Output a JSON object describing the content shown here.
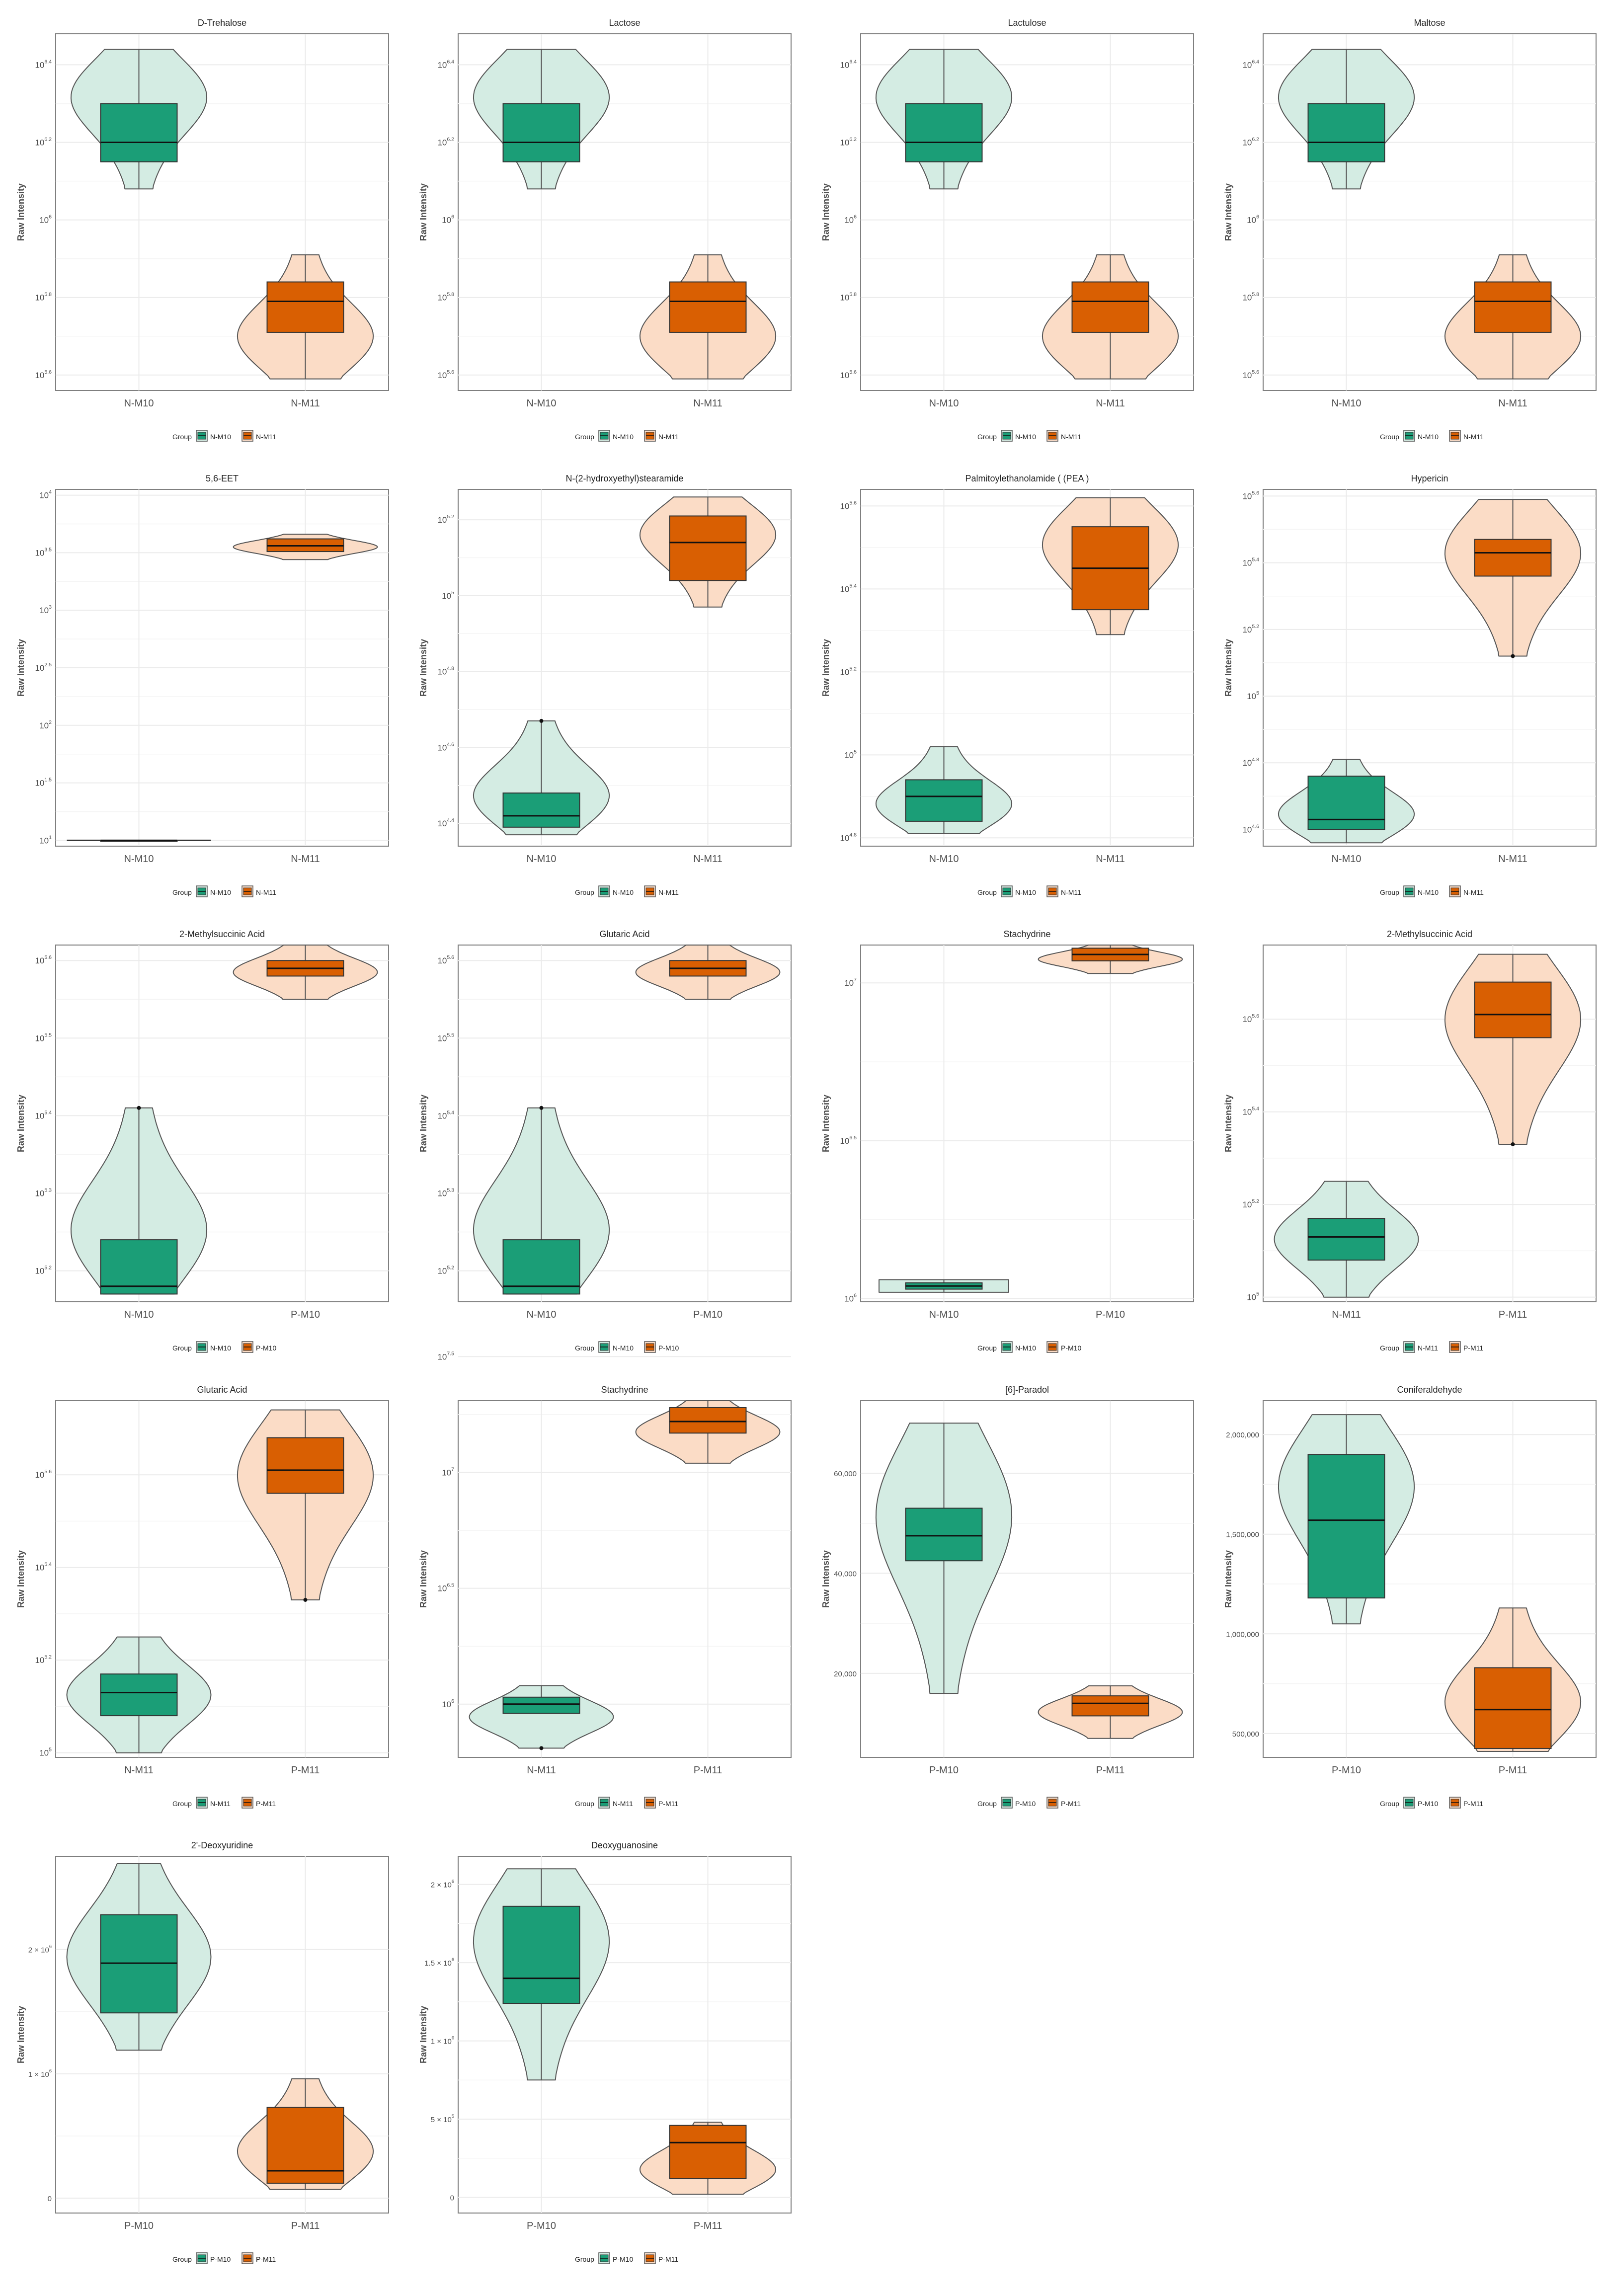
{
  "colors": {
    "first_group_fill": "#1b9e77",
    "first_group_violin": "#d4ece3",
    "second_group_fill": "#d95f02",
    "second_group_violin": "#fbdcc6",
    "outline": "#555555",
    "grid": "#ebebeb",
    "panel_border": "#7f7f7f"
  },
  "legend_title": "Group",
  "chart_data": [
    {
      "type": "violin",
      "title": "D-Trehalose",
      "ylabel": "Raw Intensity",
      "yscale": "log10",
      "ylim_exp": [
        5.56,
        6.48
      ],
      "tick_labels": [
        "10^5.6",
        "10^5.8",
        "10^6",
        "10^6.2",
        "10^6.4"
      ],
      "tick_exps": [
        5.6,
        5.8,
        6.0,
        6.2,
        6.4
      ],
      "groups": [
        {
          "name": "N-M10",
          "min": 6.08,
          "q1": 6.15,
          "median": 6.2,
          "q3": 6.3,
          "max": 6.44,
          "lower_whisker": 6.08,
          "upper_whisker": 6.44,
          "shape": "upper"
        },
        {
          "name": "N-M11",
          "min": 5.59,
          "q1": 5.71,
          "median": 5.79,
          "q3": 5.84,
          "max": 5.91,
          "lower_whisker": 5.59,
          "upper_whisker": 5.91,
          "shape": "lower"
        }
      ]
    },
    {
      "type": "violin",
      "title": "Lactose",
      "ylabel": "Raw Intensity",
      "yscale": "log10",
      "ylim_exp": [
        5.56,
        6.48
      ],
      "tick_labels": [
        "10^5.6",
        "10^5.8",
        "10^6",
        "10^6.2",
        "10^6.4"
      ],
      "tick_exps": [
        5.6,
        5.8,
        6.0,
        6.2,
        6.4
      ],
      "groups": [
        {
          "name": "N-M10",
          "min": 6.08,
          "q1": 6.15,
          "median": 6.2,
          "q3": 6.3,
          "max": 6.44,
          "lower_whisker": 6.08,
          "upper_whisker": 6.44,
          "shape": "upper"
        },
        {
          "name": "N-M11",
          "min": 5.59,
          "q1": 5.71,
          "median": 5.79,
          "q3": 5.84,
          "max": 5.91,
          "lower_whisker": 5.59,
          "upper_whisker": 5.91,
          "shape": "lower"
        }
      ]
    },
    {
      "type": "violin",
      "title": "Lactulose",
      "ylabel": "Raw Intensity",
      "yscale": "log10",
      "ylim_exp": [
        5.56,
        6.48
      ],
      "tick_labels": [
        "10^5.6",
        "10^5.8",
        "10^6",
        "10^6.2",
        "10^6.4"
      ],
      "tick_exps": [
        5.6,
        5.8,
        6.0,
        6.2,
        6.4
      ],
      "groups": [
        {
          "name": "N-M10",
          "min": 6.08,
          "q1": 6.15,
          "median": 6.2,
          "q3": 6.3,
          "max": 6.44,
          "lower_whisker": 6.08,
          "upper_whisker": 6.44,
          "shape": "upper"
        },
        {
          "name": "N-M11",
          "min": 5.59,
          "q1": 5.71,
          "median": 5.79,
          "q3": 5.84,
          "max": 5.91,
          "lower_whisker": 5.59,
          "upper_whisker": 5.91,
          "shape": "lower"
        }
      ]
    },
    {
      "type": "violin",
      "title": "Maltose",
      "ylabel": "Raw Intensity",
      "yscale": "log10",
      "ylim_exp": [
        5.56,
        6.48
      ],
      "tick_labels": [
        "10^5.6",
        "10^5.8",
        "10^6",
        "10^6.2",
        "10^6.4"
      ],
      "tick_exps": [
        5.6,
        5.8,
        6.0,
        6.2,
        6.4
      ],
      "groups": [
        {
          "name": "N-M10",
          "min": 6.08,
          "q1": 6.15,
          "median": 6.2,
          "q3": 6.3,
          "max": 6.44,
          "lower_whisker": 6.08,
          "upper_whisker": 6.44,
          "shape": "upper"
        },
        {
          "name": "N-M11",
          "min": 5.59,
          "q1": 5.71,
          "median": 5.79,
          "q3": 5.84,
          "max": 5.91,
          "lower_whisker": 5.59,
          "upper_whisker": 5.91,
          "shape": "lower"
        }
      ]
    },
    {
      "type": "violin",
      "title": "5,6-EET",
      "ylabel": "Raw Intensity",
      "yscale": "log10",
      "ylim_exp": [
        0.95,
        4.05
      ],
      "tick_labels": [
        "10^1",
        "10^1.5",
        "10^2",
        "10^2.5",
        "10^3",
        "10^3.5",
        "10^4"
      ],
      "tick_exps": [
        1,
        1.5,
        2,
        2.5,
        3,
        3.5,
        4
      ],
      "groups": [
        {
          "name": "N-M10",
          "min": 1.0,
          "q1": 1.0,
          "median": 1.0,
          "q3": 1.0,
          "max": 1.0,
          "lower_whisker": 1.0,
          "upper_whisker": 1.0,
          "shape": "flat"
        },
        {
          "name": "N-M11",
          "min": 3.44,
          "q1": 3.51,
          "median": 3.56,
          "q3": 3.62,
          "max": 3.66,
          "lower_whisker": 3.51,
          "upper_whisker": 3.62,
          "shape": "even"
        }
      ]
    },
    {
      "type": "violin",
      "title": "N-(2-hydroxyethyl)stearamide",
      "ylabel": "Raw Intensity",
      "yscale": "log10",
      "ylim_exp": [
        4.34,
        5.28
      ],
      "tick_labels": [
        "10^4.4",
        "10^4.6",
        "10^4.8",
        "10^5",
        "10^5.2"
      ],
      "tick_exps": [
        4.4,
        4.6,
        4.8,
        5.0,
        5.2
      ],
      "groups": [
        {
          "name": "N-M10",
          "min": 4.37,
          "q1": 4.39,
          "median": 4.42,
          "q3": 4.48,
          "max": 4.67,
          "lower_whisker": 4.37,
          "upper_whisker": 4.67,
          "outliers": [
            4.67
          ],
          "shape": "lower"
        },
        {
          "name": "N-M11",
          "min": 4.97,
          "q1": 5.04,
          "median": 5.14,
          "q3": 5.21,
          "max": 5.26,
          "lower_whisker": 4.97,
          "upper_whisker": 5.26,
          "shape": "upper"
        }
      ]
    },
    {
      "type": "violin",
      "title": "Palmitoylethanolamide ( (PEA )",
      "ylabel": "Raw Intensity",
      "yscale": "log10",
      "ylim_exp": [
        4.78,
        5.64
      ],
      "tick_labels": [
        "10^4.8",
        "10^5",
        "10^5.2",
        "10^5.4",
        "10^5.6"
      ],
      "tick_exps": [
        4.8,
        5.0,
        5.2,
        5.4,
        5.6
      ],
      "groups": [
        {
          "name": "N-M10",
          "min": 4.81,
          "q1": 4.84,
          "median": 4.9,
          "q3": 4.94,
          "max": 5.02,
          "lower_whisker": 4.81,
          "upper_whisker": 5.02,
          "shape": "lower"
        },
        {
          "name": "N-M11",
          "min": 5.29,
          "q1": 5.35,
          "median": 5.45,
          "q3": 5.55,
          "max": 5.62,
          "lower_whisker": 5.29,
          "upper_whisker": 5.62,
          "shape": "upper"
        }
      ]
    },
    {
      "type": "violin",
      "title": "Hypericin",
      "ylabel": "Raw Intensity",
      "yscale": "log10",
      "ylim_exp": [
        4.55,
        5.62
      ],
      "tick_labels": [
        "10^4.6",
        "10^4.8",
        "10^5",
        "10^5.2",
        "10^5.4",
        "10^5.6"
      ],
      "tick_exps": [
        4.6,
        4.8,
        5.0,
        5.2,
        5.4,
        5.6
      ],
      "groups": [
        {
          "name": "N-M10",
          "min": 4.56,
          "q1": 4.6,
          "median": 4.63,
          "q3": 4.76,
          "max": 4.81,
          "lower_whisker": 4.56,
          "upper_whisker": 4.81,
          "shape": "lower"
        },
        {
          "name": "N-M11",
          "min": 5.12,
          "q1": 5.36,
          "median": 5.43,
          "q3": 5.47,
          "max": 5.59,
          "lower_whisker": 5.12,
          "upper_whisker": 5.59,
          "outliers": [
            5.12
          ],
          "shape": "upper"
        }
      ]
    },
    {
      "type": "violin",
      "title": "2-Methylsuccinic Acid",
      "ylabel": "Raw Intensity",
      "yscale": "log10",
      "ylim_exp": [
        5.16,
        5.62
      ],
      "tick_labels": [
        "10^5.2",
        "10^5.3",
        "10^5.4",
        "10^5.5",
        "10^5.6"
      ],
      "tick_exps": [
        5.2,
        5.3,
        5.4,
        5.5,
        5.6
      ],
      "groups": [
        {
          "name": "N-M10",
          "min": 5.17,
          "q1": 5.17,
          "median": 5.18,
          "q3": 5.24,
          "max": 5.41,
          "lower_whisker": 5.17,
          "upper_whisker": 5.41,
          "outliers": [
            5.41
          ],
          "shape": "lower"
        },
        {
          "name": "P-M10",
          "min": 5.55,
          "q1": 5.58,
          "median": 5.59,
          "q3": 5.6,
          "max": 5.62,
          "lower_whisker": 5.55,
          "upper_whisker": 5.62,
          "shape": "even"
        }
      ]
    },
    {
      "type": "violin",
      "title": "Glutaric Acid",
      "ylabel": "Raw Intensity",
      "yscale": "log10",
      "ylim_exp": [
        5.16,
        5.62
      ],
      "tick_labels": [
        "10^5.2",
        "10^5.3",
        "10^5.4",
        "10^5.5",
        "10^5.6"
      ],
      "tick_exps": [
        5.2,
        5.3,
        5.4,
        5.5,
        5.6
      ],
      "groups": [
        {
          "name": "N-M10",
          "min": 5.17,
          "q1": 5.17,
          "median": 5.18,
          "q3": 5.24,
          "max": 5.41,
          "lower_whisker": 5.17,
          "upper_whisker": 5.41,
          "outliers": [
            5.41
          ],
          "shape": "lower"
        },
        {
          "name": "P-M10",
          "min": 5.55,
          "q1": 5.58,
          "median": 5.59,
          "q3": 5.6,
          "max": 5.62,
          "lower_whisker": 5.55,
          "upper_whisker": 5.62,
          "shape": "even"
        }
      ]
    },
    {
      "type": "violin",
      "title": "Stachydrine",
      "ylabel": "Raw Intensity",
      "yscale": "log10",
      "ylim_exp": [
        5.99,
        7.12
      ],
      "tick_labels": [
        "10^6",
        "10^6.5",
        "10^7"
      ],
      "tick_exps": [
        6.0,
        6.5,
        7.0
      ],
      "groups": [
        {
          "name": "N-M10",
          "min": 6.02,
          "q1": 6.03,
          "median": 6.04,
          "q3": 6.05,
          "max": 6.06,
          "lower_whisker": 6.02,
          "upper_whisker": 6.06,
          "shape": "flat"
        },
        {
          "name": "P-M10",
          "min": 7.03,
          "q1": 7.07,
          "median": 7.09,
          "q3": 7.11,
          "max": 7.12,
          "lower_whisker": 7.03,
          "upper_whisker": 7.12,
          "shape": "even"
        }
      ]
    },
    {
      "type": "violin",
      "title": "2-Methylsuccinic Acid",
      "ylabel": "Raw Intensity",
      "yscale": "log10",
      "ylim_exp": [
        4.99,
        5.76
      ],
      "tick_labels": [
        "10^5",
        "10^5.2",
        "10^5.4",
        "10^5.6"
      ],
      "tick_exps": [
        5.0,
        5.2,
        5.4,
        5.6
      ],
      "groups": [
        {
          "name": "N-M11",
          "min": 5.0,
          "q1": 5.08,
          "median": 5.13,
          "q3": 5.17,
          "max": 5.25,
          "lower_whisker": 5.0,
          "upper_whisker": 5.25,
          "shape": "even"
        },
        {
          "name": "P-M11",
          "min": 5.33,
          "q1": 5.56,
          "median": 5.61,
          "q3": 5.68,
          "max": 5.74,
          "lower_whisker": 5.33,
          "upper_whisker": 5.74,
          "outliers": [
            5.33
          ],
          "shape": "upper"
        }
      ]
    },
    {
      "type": "violin",
      "title": "Glutaric Acid",
      "ylabel": "Raw Intensity",
      "yscale": "log10",
      "ylim_exp": [
        4.99,
        5.76
      ],
      "tick_labels": [
        "10^5",
        "10^5.2",
        "10^5.4",
        "10^5.6"
      ],
      "tick_exps": [
        5.0,
        5.2,
        5.4,
        5.6
      ],
      "groups": [
        {
          "name": "N-M11",
          "min": 5.0,
          "q1": 5.08,
          "median": 5.13,
          "q3": 5.17,
          "max": 5.25,
          "lower_whisker": 5.0,
          "upper_whisker": 5.25,
          "shape": "even"
        },
        {
          "name": "P-M11",
          "min": 5.33,
          "q1": 5.56,
          "median": 5.61,
          "q3": 5.68,
          "max": 5.74,
          "lower_whisker": 5.33,
          "upper_whisker": 5.74,
          "outliers": [
            5.33
          ],
          "shape": "upper"
        }
      ]
    },
    {
      "type": "violin",
      "title": "Stachydrine",
      "ylabel": "Raw Intensity",
      "yscale": "log10",
      "ylim_exp": [
        5.77,
        7.31
      ],
      "tick_labels": [
        "10^6",
        "10^6.5",
        "10^7",
        "10^7.5"
      ],
      "tick_exps": [
        6.0,
        6.5,
        7.0,
        7.5
      ],
      "groups": [
        {
          "name": "N-M11",
          "min": 5.81,
          "q1": 5.96,
          "median": 6.0,
          "q3": 6.03,
          "max": 6.08,
          "lower_whisker": 5.96,
          "upper_whisker": 6.08,
          "outliers": [
            5.81
          ],
          "shape": "even"
        },
        {
          "name": "P-M11",
          "min": 7.04,
          "q1": 7.17,
          "median": 7.22,
          "q3": 7.28,
          "max": 7.31,
          "lower_whisker": 7.04,
          "upper_whisker": 7.31,
          "shape": "even"
        }
      ]
    },
    {
      "type": "violin",
      "title": "[6]-Paradol",
      "ylabel": "Raw Intensity",
      "yscale": "linear",
      "ylim": [
        3200,
        74500
      ],
      "tick_labels": [
        "20,000",
        "40,000",
        "60,000"
      ],
      "tick_values": [
        20000,
        40000,
        60000
      ],
      "groups": [
        {
          "name": "P-M10",
          "min": 16000,
          "q1": 42500,
          "median": 47500,
          "q3": 53000,
          "max": 70000,
          "lower_whisker": 16000,
          "upper_whisker": 70000,
          "shape": "upper"
        },
        {
          "name": "P-M11",
          "min": 7000,
          "q1": 11500,
          "median": 14000,
          "q3": 15500,
          "max": 17500,
          "lower_whisker": 7000,
          "upper_whisker": 17500,
          "shape": "even"
        }
      ]
    },
    {
      "type": "violin",
      "title": "Coniferaldehyde",
      "ylabel": "Raw Intensity",
      "yscale": "linear",
      "ylim": [
        380000,
        2170000
      ],
      "tick_labels": [
        "500,000",
        "1,000,000",
        "1,500,000",
        "2,000,000"
      ],
      "tick_values": [
        500000,
        1000000,
        1500000,
        2000000
      ],
      "groups": [
        {
          "name": "P-M10",
          "min": 1050000,
          "q1": 1180000,
          "median": 1570000,
          "q3": 1900000,
          "max": 2100000,
          "lower_whisker": 1050000,
          "upper_whisker": 2100000,
          "shape": "upper"
        },
        {
          "name": "P-M11",
          "min": 410000,
          "q1": 425000,
          "median": 620000,
          "q3": 830000,
          "max": 1130000,
          "lower_whisker": 410000,
          "upper_whisker": 1130000,
          "shape": "lower"
        }
      ]
    },
    {
      "type": "violin",
      "title": "2'-Deoxyuridine",
      "ylabel": "Raw Intensity",
      "yscale": "linear",
      "ylim": [
        -120000,
        2750000
      ],
      "tick_labels": [
        "0",
        "1 × 10^6",
        "2 × 10^6"
      ],
      "tick_values": [
        0,
        1000000,
        2000000
      ],
      "groups": [
        {
          "name": "P-M10",
          "min": 1190000,
          "q1": 1490000,
          "median": 1890000,
          "q3": 2280000,
          "max": 2690000,
          "lower_whisker": 1190000,
          "upper_whisker": 2690000,
          "shape": "even"
        },
        {
          "name": "P-M11",
          "min": 70000,
          "q1": 120000,
          "median": 220000,
          "q3": 730000,
          "max": 960000,
          "lower_whisker": 70000,
          "upper_whisker": 960000,
          "shape": "lower"
        }
      ]
    },
    {
      "type": "violin",
      "title": "Deoxyguanosine",
      "ylabel": "Raw Intensity",
      "yscale": "linear",
      "ylim": [
        -100000,
        2180000
      ],
      "tick_labels": [
        "0",
        "5 × 10^5",
        "1 × 10^6",
        "1.5 × 10^6",
        "2 × 10^6"
      ],
      "tick_values": [
        0,
        500000,
        1000000,
        1500000,
        2000000
      ],
      "groups": [
        {
          "name": "P-M10",
          "min": 750000,
          "q1": 1240000,
          "median": 1400000,
          "q3": 1860000,
          "max": 2100000,
          "lower_whisker": 750000,
          "upper_whisker": 2100000,
          "shape": "upper"
        },
        {
          "name": "P-M11",
          "min": 20000,
          "q1": 120000,
          "median": 350000,
          "q3": 460000,
          "max": 480000,
          "lower_whisker": 20000,
          "upper_whisker": 480000,
          "shape": "lower"
        }
      ]
    }
  ]
}
